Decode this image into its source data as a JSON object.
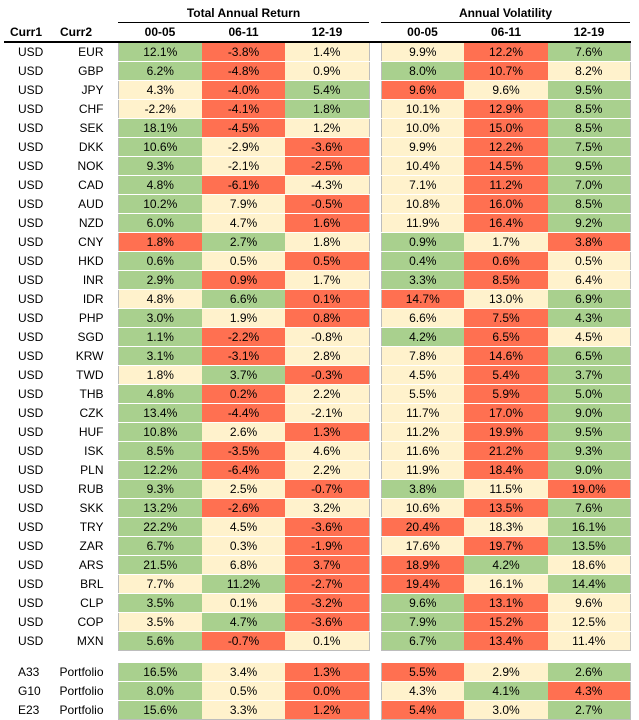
{
  "groups": {
    "total_return": "Total Annual Return",
    "volatility": "Annual Volatility"
  },
  "headers": {
    "curr1": "Curr1",
    "curr2": "Curr2",
    "periods": [
      "00-05",
      "06-11",
      "12-19"
    ]
  },
  "colors": {
    "green": "#a9d08e",
    "red": "#ff7051",
    "yellow": "#fff2cc"
  },
  "rows": [
    {
      "c1": "USD",
      "c2": "EUR",
      "ret": [
        "12.1%",
        "-3.8%",
        "1.4%"
      ],
      "retc": [
        "g",
        "r",
        "y"
      ],
      "vol": [
        "9.9%",
        "12.2%",
        "7.6%"
      ],
      "volc": [
        "y",
        "r",
        "g"
      ]
    },
    {
      "c1": "USD",
      "c2": "GBP",
      "ret": [
        "6.2%",
        "-4.8%",
        "0.9%"
      ],
      "retc": [
        "g",
        "r",
        "y"
      ],
      "vol": [
        "8.0%",
        "10.7%",
        "8.2%"
      ],
      "volc": [
        "g",
        "r",
        "y"
      ]
    },
    {
      "c1": "USD",
      "c2": "JPY",
      "ret": [
        "4.3%",
        "-4.0%",
        "5.4%"
      ],
      "retc": [
        "y",
        "r",
        "g"
      ],
      "vol": [
        "9.6%",
        "9.6%",
        "9.5%"
      ],
      "volc": [
        "r",
        "y",
        "g"
      ]
    },
    {
      "c1": "USD",
      "c2": "CHF",
      "ret": [
        "-2.2%",
        "-4.1%",
        "1.8%"
      ],
      "retc": [
        "y",
        "r",
        "g"
      ],
      "vol": [
        "10.1%",
        "12.9%",
        "8.5%"
      ],
      "volc": [
        "y",
        "r",
        "g"
      ]
    },
    {
      "c1": "USD",
      "c2": "SEK",
      "ret": [
        "18.1%",
        "-4.5%",
        "1.2%"
      ],
      "retc": [
        "g",
        "r",
        "y"
      ],
      "vol": [
        "10.0%",
        "15.0%",
        "8.5%"
      ],
      "volc": [
        "y",
        "r",
        "g"
      ]
    },
    {
      "c1": "USD",
      "c2": "DKK",
      "ret": [
        "10.6%",
        "-2.9%",
        "-3.6%"
      ],
      "retc": [
        "g",
        "y",
        "r"
      ],
      "vol": [
        "9.9%",
        "12.2%",
        "7.5%"
      ],
      "volc": [
        "y",
        "r",
        "g"
      ]
    },
    {
      "c1": "USD",
      "c2": "NOK",
      "ret": [
        "9.3%",
        "-2.1%",
        "-2.5%"
      ],
      "retc": [
        "g",
        "y",
        "r"
      ],
      "vol": [
        "10.4%",
        "14.5%",
        "9.5%"
      ],
      "volc": [
        "y",
        "r",
        "g"
      ]
    },
    {
      "c1": "USD",
      "c2": "CAD",
      "ret": [
        "4.8%",
        "-6.1%",
        "-4.3%"
      ],
      "retc": [
        "g",
        "r",
        "y"
      ],
      "vol": [
        "7.1%",
        "11.2%",
        "7.0%"
      ],
      "volc": [
        "y",
        "r",
        "g"
      ]
    },
    {
      "c1": "USD",
      "c2": "AUD",
      "ret": [
        "10.2%",
        "7.9%",
        "-0.5%"
      ],
      "retc": [
        "g",
        "y",
        "r"
      ],
      "vol": [
        "10.8%",
        "16.0%",
        "8.5%"
      ],
      "volc": [
        "y",
        "r",
        "g"
      ]
    },
    {
      "c1": "USD",
      "c2": "NZD",
      "ret": [
        "6.0%",
        "4.7%",
        "1.6%"
      ],
      "retc": [
        "g",
        "y",
        "r"
      ],
      "vol": [
        "11.9%",
        "16.4%",
        "9.2%"
      ],
      "volc": [
        "y",
        "r",
        "g"
      ]
    },
    {
      "c1": "USD",
      "c2": "CNY",
      "ret": [
        "1.8%",
        "2.7%",
        "1.8%"
      ],
      "retc": [
        "r",
        "g",
        "y"
      ],
      "vol": [
        "0.9%",
        "1.7%",
        "3.8%"
      ],
      "volc": [
        "g",
        "y",
        "r"
      ]
    },
    {
      "c1": "USD",
      "c2": "HKD",
      "ret": [
        "0.6%",
        "0.5%",
        "0.5%"
      ],
      "retc": [
        "g",
        "y",
        "r"
      ],
      "vol": [
        "0.4%",
        "0.6%",
        "0.5%"
      ],
      "volc": [
        "g",
        "r",
        "y"
      ]
    },
    {
      "c1": "USD",
      "c2": "INR",
      "ret": [
        "2.9%",
        "0.9%",
        "1.7%"
      ],
      "retc": [
        "g",
        "r",
        "y"
      ],
      "vol": [
        "3.3%",
        "8.5%",
        "6.4%"
      ],
      "volc": [
        "g",
        "r",
        "y"
      ]
    },
    {
      "c1": "USD",
      "c2": "IDR",
      "ret": [
        "4.8%",
        "6.6%",
        "0.1%"
      ],
      "retc": [
        "y",
        "g",
        "r"
      ],
      "vol": [
        "14.7%",
        "13.0%",
        "6.9%"
      ],
      "volc": [
        "r",
        "y",
        "g"
      ]
    },
    {
      "c1": "USD",
      "c2": "PHP",
      "ret": [
        "3.0%",
        "1.9%",
        "0.8%"
      ],
      "retc": [
        "g",
        "y",
        "r"
      ],
      "vol": [
        "6.6%",
        "7.5%",
        "4.3%"
      ],
      "volc": [
        "y",
        "r",
        "g"
      ]
    },
    {
      "c1": "USD",
      "c2": "SGD",
      "ret": [
        "1.1%",
        "-2.2%",
        "-0.8%"
      ],
      "retc": [
        "g",
        "r",
        "y"
      ],
      "vol": [
        "4.2%",
        "6.5%",
        "4.5%"
      ],
      "volc": [
        "g",
        "r",
        "y"
      ]
    },
    {
      "c1": "USD",
      "c2": "KRW",
      "ret": [
        "3.1%",
        "-3.1%",
        "2.8%"
      ],
      "retc": [
        "g",
        "r",
        "y"
      ],
      "vol": [
        "7.8%",
        "14.6%",
        "6.5%"
      ],
      "volc": [
        "y",
        "r",
        "g"
      ]
    },
    {
      "c1": "USD",
      "c2": "TWD",
      "ret": [
        "1.8%",
        "3.7%",
        "-0.3%"
      ],
      "retc": [
        "y",
        "g",
        "r"
      ],
      "vol": [
        "4.5%",
        "5.4%",
        "3.7%"
      ],
      "volc": [
        "y",
        "r",
        "g"
      ]
    },
    {
      "c1": "USD",
      "c2": "THB",
      "ret": [
        "4.8%",
        "0.2%",
        "2.2%"
      ],
      "retc": [
        "g",
        "r",
        "y"
      ],
      "vol": [
        "5.5%",
        "5.9%",
        "5.0%"
      ],
      "volc": [
        "y",
        "r",
        "g"
      ]
    },
    {
      "c1": "USD",
      "c2": "CZK",
      "ret": [
        "13.4%",
        "-4.4%",
        "-2.1%"
      ],
      "retc": [
        "g",
        "r",
        "y"
      ],
      "vol": [
        "11.7%",
        "17.0%",
        "9.0%"
      ],
      "volc": [
        "y",
        "r",
        "g"
      ]
    },
    {
      "c1": "USD",
      "c2": "HUF",
      "ret": [
        "10.8%",
        "2.6%",
        "1.3%"
      ],
      "retc": [
        "g",
        "y",
        "r"
      ],
      "vol": [
        "11.2%",
        "19.9%",
        "9.5%"
      ],
      "volc": [
        "y",
        "r",
        "g"
      ]
    },
    {
      "c1": "USD",
      "c2": "ISK",
      "ret": [
        "8.5%",
        "-3.5%",
        "4.6%"
      ],
      "retc": [
        "g",
        "r",
        "y"
      ],
      "vol": [
        "11.6%",
        "21.2%",
        "9.3%"
      ],
      "volc": [
        "y",
        "r",
        "g"
      ]
    },
    {
      "c1": "USD",
      "c2": "PLN",
      "ret": [
        "12.2%",
        "-6.4%",
        "2.2%"
      ],
      "retc": [
        "g",
        "r",
        "y"
      ],
      "vol": [
        "11.9%",
        "18.4%",
        "9.0%"
      ],
      "volc": [
        "y",
        "r",
        "g"
      ]
    },
    {
      "c1": "USD",
      "c2": "RUB",
      "ret": [
        "9.3%",
        "2.5%",
        "-0.7%"
      ],
      "retc": [
        "g",
        "y",
        "r"
      ],
      "vol": [
        "3.8%",
        "11.5%",
        "19.0%"
      ],
      "volc": [
        "g",
        "y",
        "r"
      ]
    },
    {
      "c1": "USD",
      "c2": "SKK",
      "ret": [
        "13.2%",
        "-2.6%",
        "3.2%"
      ],
      "retc": [
        "g",
        "r",
        "y"
      ],
      "vol": [
        "10.6%",
        "13.5%",
        "7.6%"
      ],
      "volc": [
        "y",
        "r",
        "g"
      ]
    },
    {
      "c1": "USD",
      "c2": "TRY",
      "ret": [
        "22.2%",
        "4.5%",
        "-3.6%"
      ],
      "retc": [
        "g",
        "y",
        "r"
      ],
      "vol": [
        "20.4%",
        "18.3%",
        "16.1%"
      ],
      "volc": [
        "r",
        "y",
        "g"
      ]
    },
    {
      "c1": "USD",
      "c2": "ZAR",
      "ret": [
        "6.7%",
        "0.3%",
        "-1.9%"
      ],
      "retc": [
        "g",
        "y",
        "r"
      ],
      "vol": [
        "17.6%",
        "19.7%",
        "13.5%"
      ],
      "volc": [
        "y",
        "r",
        "g"
      ]
    },
    {
      "c1": "USD",
      "c2": "ARS",
      "ret": [
        "21.5%",
        "6.8%",
        "3.7%"
      ],
      "retc": [
        "g",
        "y",
        "r"
      ],
      "vol": [
        "18.9%",
        "4.2%",
        "18.6%"
      ],
      "volc": [
        "r",
        "g",
        "y"
      ]
    },
    {
      "c1": "USD",
      "c2": "BRL",
      "ret": [
        "7.7%",
        "11.2%",
        "-2.7%"
      ],
      "retc": [
        "y",
        "g",
        "r"
      ],
      "vol": [
        "19.4%",
        "16.1%",
        "14.4%"
      ],
      "volc": [
        "r",
        "y",
        "g"
      ]
    },
    {
      "c1": "USD",
      "c2": "CLP",
      "ret": [
        "3.5%",
        "0.1%",
        "-3.2%"
      ],
      "retc": [
        "g",
        "y",
        "r"
      ],
      "vol": [
        "9.6%",
        "13.1%",
        "9.6%"
      ],
      "volc": [
        "g",
        "r",
        "y"
      ]
    },
    {
      "c1": "USD",
      "c2": "COP",
      "ret": [
        "3.5%",
        "4.7%",
        "-3.6%"
      ],
      "retc": [
        "y",
        "g",
        "r"
      ],
      "vol": [
        "7.9%",
        "15.2%",
        "12.5%"
      ],
      "volc": [
        "g",
        "r",
        "y"
      ]
    },
    {
      "c1": "USD",
      "c2": "MXN",
      "ret": [
        "5.6%",
        "-0.7%",
        "0.1%"
      ],
      "retc": [
        "g",
        "r",
        "y"
      ],
      "vol": [
        "6.7%",
        "13.4%",
        "11.4%"
      ],
      "volc": [
        "g",
        "r",
        "y"
      ]
    }
  ],
  "portfolios": [
    {
      "c1": "A33",
      "c2": "Portfolio",
      "ret": [
        "16.5%",
        "3.4%",
        "1.3%"
      ],
      "retc": [
        "g",
        "y",
        "r"
      ],
      "vol": [
        "5.5%",
        "2.9%",
        "2.6%"
      ],
      "volc": [
        "r",
        "y",
        "g"
      ]
    },
    {
      "c1": "G10",
      "c2": "Portfolio",
      "ret": [
        "8.0%",
        "0.5%",
        "0.0%"
      ],
      "retc": [
        "g",
        "y",
        "r"
      ],
      "vol": [
        "4.3%",
        "4.1%",
        "4.3%"
      ],
      "volc": [
        "y",
        "g",
        "r"
      ]
    },
    {
      "c1": "E23",
      "c2": "Portfolio",
      "ret": [
        "15.6%",
        "3.3%",
        "1.2%"
      ],
      "retc": [
        "g",
        "y",
        "r"
      ],
      "vol": [
        "5.4%",
        "3.0%",
        "2.7%"
      ],
      "volc": [
        "r",
        "y",
        "g"
      ]
    }
  ]
}
